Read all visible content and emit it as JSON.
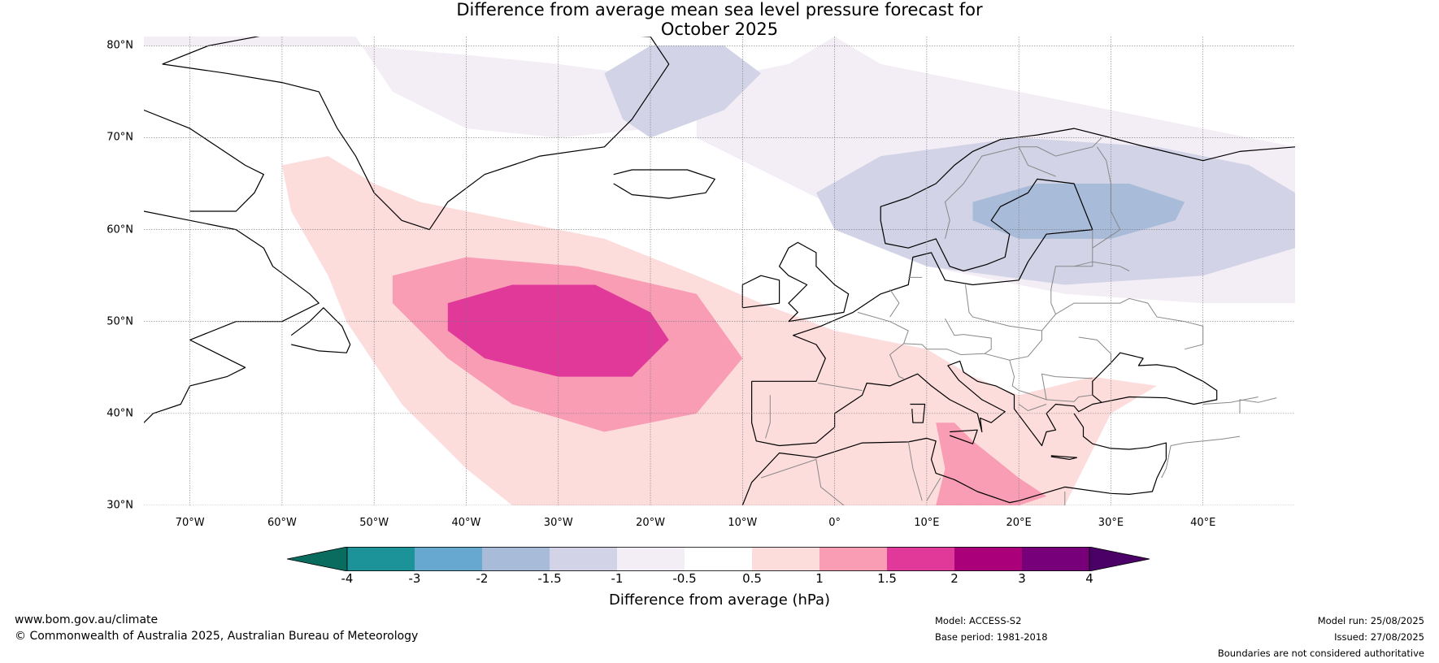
{
  "title_line1": "Difference from average mean sea level pressure forecast for",
  "title_line2": "October 2025",
  "lat_labels": [
    {
      "lat": 80,
      "label": "80°N"
    },
    {
      "lat": 70,
      "label": "70°N"
    },
    {
      "lat": 60,
      "label": "60°N"
    },
    {
      "lat": 50,
      "label": "50°N"
    },
    {
      "lat": 40,
      "label": "40°N"
    },
    {
      "lat": 30,
      "label": "30°N"
    }
  ],
  "lon_labels": [
    {
      "lon": -70,
      "label": "70°W"
    },
    {
      "lon": -60,
      "label": "60°W"
    },
    {
      "lon": -50,
      "label": "50°W"
    },
    {
      "lon": -40,
      "label": "40°W"
    },
    {
      "lon": -30,
      "label": "30°W"
    },
    {
      "lon": -20,
      "label": "20°W"
    },
    {
      "lon": -10,
      "label": "10°W"
    },
    {
      "lon": 0,
      "label": "0°"
    },
    {
      "lon": 10,
      "label": "10°E"
    },
    {
      "lon": 20,
      "label": "20°E"
    },
    {
      "lon": 30,
      "label": "30°E"
    },
    {
      "lon": 40,
      "label": "40°E"
    }
  ],
  "map_extent": {
    "lon_min": -75,
    "lon_max": 50,
    "lat_min": 30,
    "lat_max": 81
  },
  "colorbar": {
    "title": "Difference from average (hPa)",
    "ticks": [
      "-4",
      "-3",
      "-2",
      "-1.5",
      "-1",
      "-0.5",
      "0.5",
      "1",
      "1.5",
      "2",
      "3",
      "4"
    ],
    "colors": [
      "#1c9399",
      "#66a8d0",
      "#a8bbd8",
      "#d2d3e6",
      "#f3edf5",
      "#ffffff",
      "#fddcdc",
      "#f99db5",
      "#e0399a",
      "#aa0079",
      "#77007a"
    ],
    "under_color": "#0a6b5f",
    "over_color": "#4a0066"
  },
  "anomaly_regions": [
    {
      "name": "arctic-low-1",
      "color": "#f3edf5",
      "points": [
        [
          -75,
          81
        ],
        [
          -52,
          81
        ],
        [
          -48,
          75
        ],
        [
          -40,
          71
        ],
        [
          -30,
          70
        ],
        [
          -20,
          71
        ],
        [
          -15,
          76
        ],
        [
          -5,
          78
        ],
        [
          0,
          81
        ],
        [
          5,
          78
        ],
        [
          20,
          75
        ],
        [
          35,
          72
        ],
        [
          45,
          70
        ],
        [
          50,
          69
        ],
        [
          50,
          52
        ],
        [
          40,
          52
        ],
        [
          25,
          53
        ],
        [
          10,
          56
        ],
        [
          5,
          60
        ],
        [
          -5,
          65
        ],
        [
          -15,
          70
        ],
        [
          -15,
          76
        ],
        [
          -30,
          78
        ],
        [
          -40,
          79
        ],
        [
          -52,
          80
        ],
        [
          -75,
          80
        ]
      ]
    },
    {
      "name": "arctic-low-2",
      "color": "#d2d3e6",
      "points": [
        [
          -20,
          70
        ],
        [
          -12,
          73
        ],
        [
          -8,
          77
        ],
        [
          -12,
          80
        ],
        [
          -20,
          80
        ],
        [
          -25,
          77
        ],
        [
          -23,
          72
        ]
      ]
    },
    {
      "name": "scandinavia-low-1",
      "color": "#d2d3e6",
      "points": [
        [
          -2,
          64
        ],
        [
          5,
          68
        ],
        [
          20,
          70
        ],
        [
          35,
          69
        ],
        [
          45,
          67
        ],
        [
          50,
          64
        ],
        [
          50,
          58
        ],
        [
          40,
          55
        ],
        [
          25,
          54
        ],
        [
          10,
          56
        ],
        [
          0,
          60
        ]
      ]
    },
    {
      "name": "scandinavia-low-2",
      "color": "#a8bbd8",
      "points": [
        [
          15,
          63
        ],
        [
          22,
          65
        ],
        [
          32,
          65
        ],
        [
          38,
          63
        ],
        [
          37,
          61
        ],
        [
          30,
          59
        ],
        [
          20,
          59
        ],
        [
          15,
          61
        ]
      ]
    },
    {
      "name": "atlantic-high-1",
      "color": "#fddcdc",
      "points": [
        [
          -60,
          67
        ],
        [
          -55,
          68
        ],
        [
          -50,
          65
        ],
        [
          -45,
          63
        ],
        [
          -35,
          61
        ],
        [
          -25,
          59
        ],
        [
          -15,
          55
        ],
        [
          -8,
          52
        ],
        [
          0,
          49
        ],
        [
          10,
          47
        ],
        [
          15,
          44
        ],
        [
          20,
          42
        ],
        [
          28,
          44
        ],
        [
          35,
          43
        ],
        [
          30,
          40
        ],
        [
          28,
          36
        ],
        [
          25,
          30
        ],
        [
          -5,
          30
        ],
        [
          -10,
          30
        ],
        [
          -22,
          30
        ],
        [
          -35,
          30
        ],
        [
          -40,
          34
        ],
        [
          -47,
          41
        ],
        [
          -53,
          50
        ],
        [
          -55,
          55
        ],
        [
          -59,
          62
        ]
      ]
    },
    {
      "name": "atlantic-high-2",
      "color": "#f99db5",
      "points": [
        [
          -48,
          55
        ],
        [
          -40,
          57
        ],
        [
          -28,
          56
        ],
        [
          -15,
          53
        ],
        [
          -10,
          46
        ],
        [
          -15,
          40
        ],
        [
          -25,
          38
        ],
        [
          -35,
          41
        ],
        [
          -42,
          46
        ],
        [
          -48,
          52
        ]
      ]
    },
    {
      "name": "atlantic-high-3",
      "color": "#e0399a",
      "points": [
        [
          -42,
          52
        ],
        [
          -35,
          54
        ],
        [
          -26,
          54
        ],
        [
          -20,
          51
        ],
        [
          -18,
          48
        ],
        [
          -22,
          44
        ],
        [
          -30,
          44
        ],
        [
          -38,
          46
        ],
        [
          -42,
          49
        ]
      ]
    },
    {
      "name": "mediterranean-high",
      "color": "#f99db5",
      "points": [
        [
          11,
          39
        ],
        [
          13,
          39
        ],
        [
          15,
          37
        ],
        [
          20,
          33
        ],
        [
          23,
          31
        ],
        [
          20,
          30
        ],
        [
          11,
          30
        ],
        [
          12,
          34
        ]
      ]
    }
  ],
  "footer": {
    "website": "www.bom.gov.au/climate",
    "copyright": "© Commonwealth of Australia 2025, Australian Bureau of Meteorology",
    "model": "Model: ACCESS-S2",
    "base_period": "Base period: 1981-2018",
    "model_run": "Model run: 25/08/2025",
    "issued": "Issued: 27/08/2025",
    "disclaimer": "Boundaries are not considered authoritative"
  }
}
